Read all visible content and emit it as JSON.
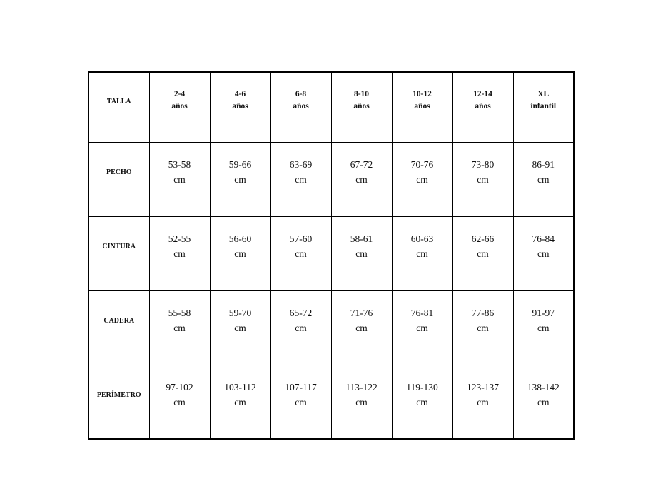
{
  "table": {
    "header": [
      "TALLA",
      "2-4\naños",
      "4-6\naños",
      "6-8\naños",
      "8-10\naños",
      "10-12\naños",
      "12-14\naños",
      "XL\ninfantil"
    ],
    "rows": [
      [
        "PECHO",
        "53-58\ncm",
        "59-66\ncm",
        "63-69\ncm",
        "67-72\ncm",
        "70-76\ncm",
        "73-80\ncm",
        "86-91\ncm"
      ],
      [
        "CINTURA",
        "52-55\ncm",
        "56-60\ncm",
        "57-60\ncm",
        "58-61\ncm",
        "60-63\ncm",
        "62-66\ncm",
        "76-84\ncm"
      ],
      [
        "CADERA",
        "55-58\ncm",
        "59-70\ncm",
        "65-72\ncm",
        "71-76\ncm",
        "76-81\ncm",
        "77-86\ncm",
        "91-97\ncm"
      ],
      [
        "PERÍMETRO",
        "97-102\ncm",
        "103-112\ncm",
        "107-117\ncm",
        "113-122\ncm",
        "119-130\ncm",
        "123-137\ncm",
        "138-142\ncm"
      ]
    ]
  }
}
